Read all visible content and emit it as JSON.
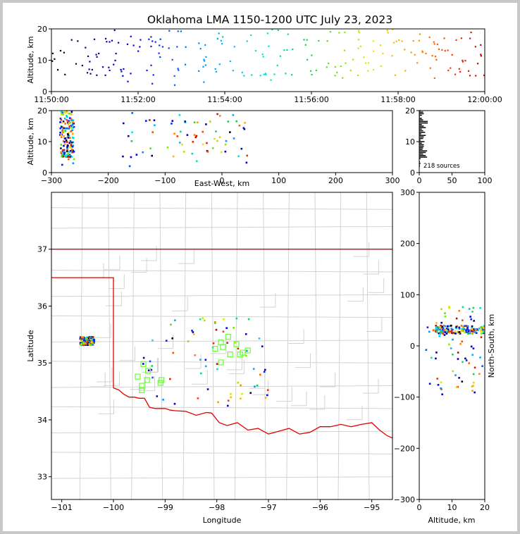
{
  "title": "Oklahoma LMA 1150-1200 UTC July 23, 2023",
  "colors": {
    "background": "#c8c8c8",
    "panel": "#ffffff",
    "county": "#d2d2d2",
    "state": "#e00000",
    "station": "#66ff33"
  },
  "chart_data": [
    {
      "id": "alt_time",
      "type": "scatter",
      "xlabel": "",
      "ylabel": "Altitude, km",
      "xlim": [
        0,
        10
      ],
      "ylim": [
        0,
        20
      ],
      "xticks": [
        0,
        2,
        4,
        6,
        8,
        10
      ],
      "xtick_labels": [
        "11:50:00",
        "11:52:00",
        "11:54:00",
        "11:56:00",
        "11:58:00",
        "12:00:00"
      ],
      "yticks": [
        0,
        10,
        20
      ],
      "x_units": "minutes after 11:50:00 UTC",
      "color_by": "time"
    },
    {
      "id": "alt_ew",
      "type": "scatter",
      "xlabel": "East-West, km",
      "ylabel": "Altitude, km",
      "xlim": [
        -300,
        300
      ],
      "ylim": [
        0,
        20
      ],
      "xticks": [
        -300,
        -200,
        -100,
        0,
        100,
        200,
        300
      ],
      "yticks": [
        0,
        10,
        20
      ]
    },
    {
      "id": "histogram",
      "type": "bar",
      "xlim": [
        0,
        100
      ],
      "ylim": [
        0,
        20
      ],
      "xticks": [
        0,
        50,
        100
      ],
      "yticks": [
        0,
        10,
        20
      ],
      "annotation": "218 sources"
    },
    {
      "id": "map",
      "type": "scatter",
      "xlabel": "Longitude",
      "ylabel": "Latitude",
      "xlim": [
        -101.2,
        -94.6
      ],
      "ylim": [
        32.6,
        38.0
      ],
      "xticks": [
        -101,
        -100,
        -99,
        -98,
        -97,
        -96,
        -95
      ],
      "yticks": [
        33,
        34,
        35,
        36,
        37
      ],
      "stations": [
        [
          -97.78,
          35.46
        ],
        [
          -97.92,
          35.36
        ],
        [
          -97.62,
          35.33
        ],
        [
          -97.4,
          35.22
        ],
        [
          -98.03,
          35.25
        ],
        [
          -97.88,
          35.28
        ],
        [
          -97.92,
          35.01
        ],
        [
          -97.74,
          35.15
        ],
        [
          -97.55,
          35.15
        ],
        [
          -97.5,
          35.18
        ],
        [
          -99.42,
          34.98
        ],
        [
          -99.33,
          34.86
        ],
        [
          -99.35,
          34.7
        ],
        [
          -99.53,
          34.76
        ],
        [
          -99.45,
          34.6
        ],
        [
          -99.45,
          34.52
        ],
        [
          -99.07,
          34.7
        ],
        [
          -99.09,
          34.65
        ]
      ]
    },
    {
      "id": "ns_alt",
      "type": "scatter",
      "xlabel": "Altitude, km",
      "ylabel": "North-South, km",
      "xlim": [
        0,
        20
      ],
      "ylim": [
        -300,
        300
      ],
      "xticks": [
        0,
        10,
        20
      ],
      "yticks": [
        -300,
        -200,
        -100,
        0,
        100,
        200,
        300
      ]
    }
  ]
}
